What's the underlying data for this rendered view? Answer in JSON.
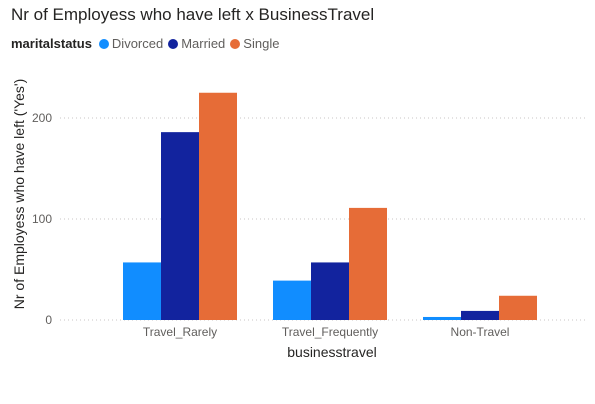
{
  "chart_data": {
    "type": "bar",
    "title": "Nr of Employess who have left x BusinessTravel",
    "legend_title": "maritalstatus",
    "legend_position": "top-left",
    "xlabel": "businesstravel",
    "ylabel": "Nr of Employess who have left ('Yes')",
    "categories": [
      "Travel_Rarely",
      "Travel_Frequently",
      "Non-Travel"
    ],
    "yticks": [
      0,
      100,
      200
    ],
    "ylim": [
      0,
      240
    ],
    "grid": true,
    "series": [
      {
        "name": "Divorced",
        "color": "#118DFF",
        "values": [
          57,
          39,
          3
        ]
      },
      {
        "name": "Married",
        "color": "#12239E",
        "values": [
          186,
          57,
          9
        ]
      },
      {
        "name": "Single",
        "color": "#E66C37",
        "values": [
          225,
          111,
          24
        ]
      }
    ]
  }
}
